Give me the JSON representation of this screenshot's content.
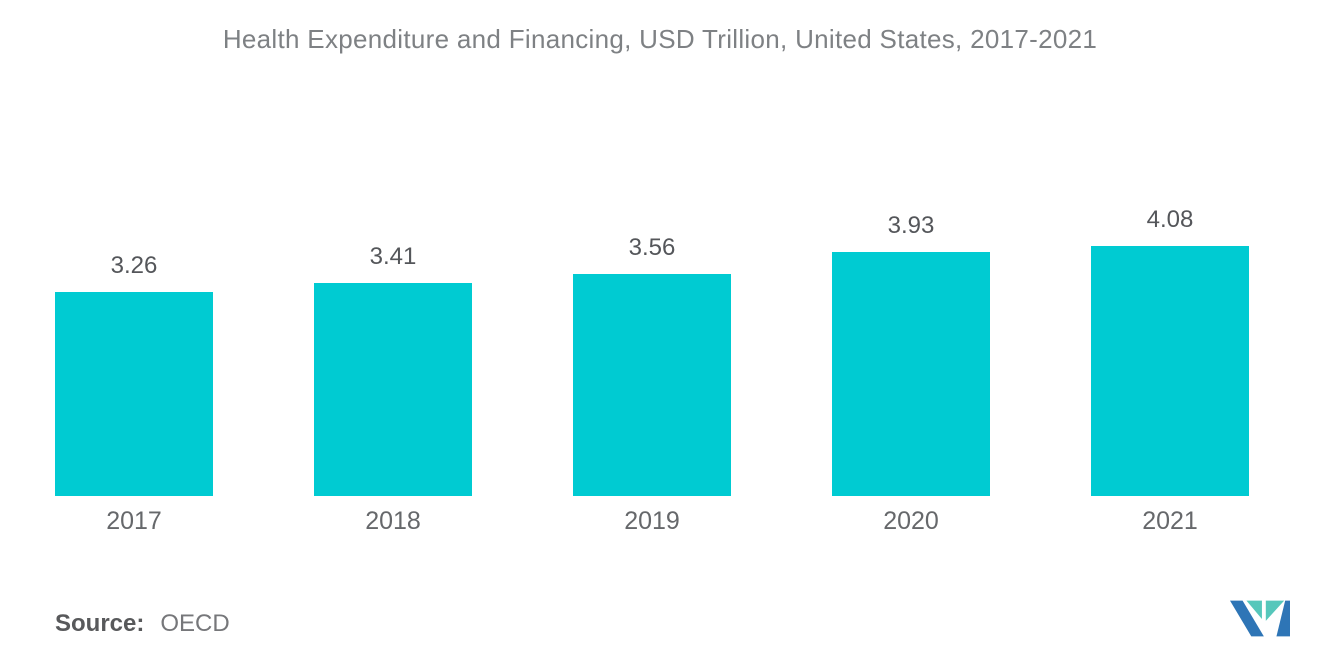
{
  "title": "Health Expenditure and Financing, USD Trillion, United States, 2017-2021",
  "source": {
    "label": "Source:",
    "value": "OECD"
  },
  "logo": {
    "name": "mordor-intelligence-logo",
    "colors": {
      "blue": "#2E75B6",
      "teal": "#56C7BB"
    }
  },
  "colors": {
    "bar": "#00CBD2",
    "title_text": "#7E8184",
    "value_label": "#54565A",
    "year_label": "#66686B",
    "source_label": "#58595B",
    "source_value": "#76777A",
    "background": "#FFFFFF"
  },
  "chart_data": {
    "type": "bar",
    "categories": [
      "2017",
      "2018",
      "2019",
      "2020",
      "2021"
    ],
    "values": [
      3.26,
      3.41,
      3.56,
      3.93,
      4.08
    ],
    "title": "Health Expenditure and Financing, USD Trillion, United States, 2017-2021",
    "xlabel": "",
    "ylabel": "",
    "source": "OECD",
    "bar_color": "#00CBD2",
    "value_labels": true,
    "grid": false,
    "legend": false,
    "axes_visible": false,
    "ylim": [
      0,
      4.5
    ]
  }
}
